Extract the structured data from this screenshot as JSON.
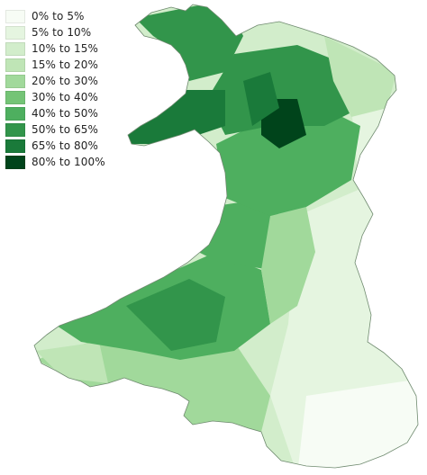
{
  "legend": {
    "items": [
      {
        "label": "0% to 5%",
        "color": "#f7fcf5"
      },
      {
        "label": "5% to 10%",
        "color": "#e5f5e0"
      },
      {
        "label": "10% to 15%",
        "color": "#d2edcb"
      },
      {
        "label": "15% to 20%",
        "color": "#bfe5b6"
      },
      {
        "label": "20% to 30%",
        "color": "#a1d99b"
      },
      {
        "label": "30% to 40%",
        "color": "#74c476"
      },
      {
        "label": "40% to 50%",
        "color": "#4eaf5f"
      },
      {
        "label": "50% to 65%",
        "color": "#32954b"
      },
      {
        "label": "65% to 80%",
        "color": "#1a7a3a"
      },
      {
        "label": "80% to 100%",
        "color": "#00441b"
      }
    ]
  },
  "map": {
    "region": "Wales",
    "outline_color": "#6f8a6f"
  }
}
